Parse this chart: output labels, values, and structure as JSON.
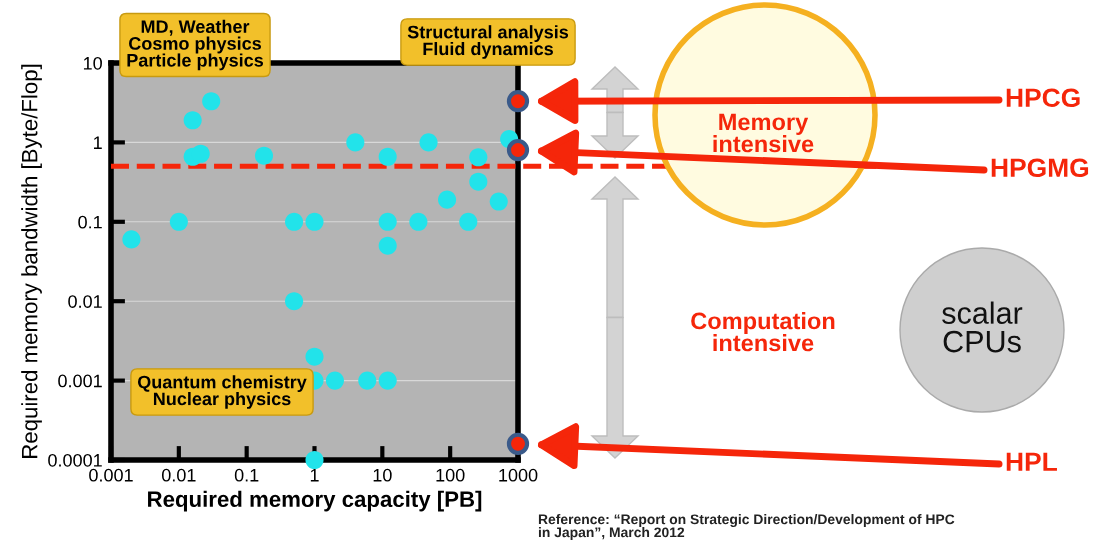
{
  "chart_data": {
    "type": "scatter",
    "xlabel": "Required memory capacity [PB]",
    "ylabel": "Required memory bandwidth [Byte/Flop]",
    "log": "xy",
    "xlim": [
      0.001,
      1000
    ],
    "ylim": [
      0.0001,
      10
    ],
    "xticks": [
      0.001,
      0.01,
      0.1,
      1,
      10,
      100,
      1000
    ],
    "yticks": [
      0.0001,
      0.001,
      0.01,
      0.1,
      1,
      10
    ],
    "grid": "y",
    "marker": "circle",
    "legend": false,
    "series": [
      {
        "color": "#22e3ea",
        "x": [
          0.002,
          0.01,
          0.03,
          0.016,
          0.016,
          0.021,
          0.18,
          0.5,
          1,
          4,
          12,
          12,
          12,
          34,
          48,
          90,
          185,
          260,
          260,
          520,
          740,
          0.5,
          1,
          1,
          2,
          6,
          12,
          1
        ],
        "values": [
          0.06,
          0.1,
          3.3,
          1.9,
          0.66,
          0.72,
          0.68,
          0.1,
          0.1,
          1,
          0.66,
          0.1,
          0.05,
          0.1,
          1,
          0.19,
          0.1,
          0.65,
          0.32,
          0.18,
          1.1,
          0.01,
          0.002,
          0.001,
          0.001,
          0.001,
          0.001,
          0.0001
        ]
      },
      {
        "color": "#f5260a",
        "x": [
          1000,
          1000,
          1000
        ],
        "values": [
          3.3,
          0.8,
          0.00016
        ]
      }
    ],
    "ref_lines": [
      {
        "axis": "y",
        "value": 0.5,
        "color": "#f5260a",
        "line_style": "dashed"
      }
    ],
    "annotations": [
      "MD, Weather\nCosmo physics\nParticle physics",
      "Structural analysis\nFluid dynamics",
      "Quantum chemistry\nNuclear physics",
      "Memory\nintensive",
      "Computation\nintensive",
      "scalar\nCPUs",
      "Reference: “Report on Strategic Direction/Development of HPC\nin Japan”, March 2012",
      "HPCG",
      "HPGMG",
      "HPL"
    ]
  }
}
